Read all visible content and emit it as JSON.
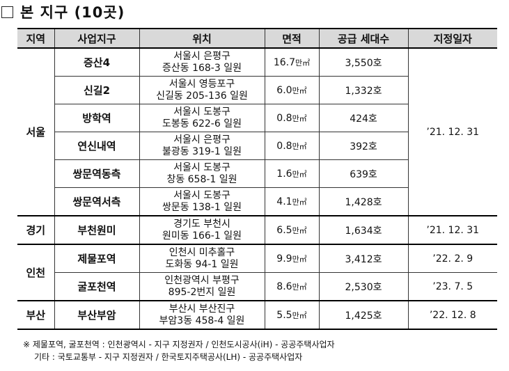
{
  "title": "본 지구 (10곳)",
  "table": {
    "headers": [
      "지역",
      "사업지구",
      "위치",
      "면적",
      "공급 세대수",
      "지정일자"
    ],
    "rows": [
      {
        "region": "서울",
        "district": "증산4",
        "loc1": "서울시 은평구",
        "loc2": "증산동 168-3 일원",
        "area": "16.7",
        "units": "3,550호"
      },
      {
        "district": "신길2",
        "loc1": "서울시 영등포구",
        "loc2": "신길동 205-136 일원",
        "area": "6.0",
        "units": "1,332호"
      },
      {
        "district": "방학역",
        "loc1": "서울시 도봉구",
        "loc2": "도봉동 622-6 일원",
        "area": "0.8",
        "units": "424호"
      },
      {
        "district": "연신내역",
        "loc1": "서울시 은평구",
        "loc2": "불광동 319-1 일원",
        "area": "0.8",
        "units": "392호"
      },
      {
        "district": "쌍문역동측",
        "loc1": "서울시 도봉구",
        "loc2": "창동 658-1 일원",
        "area": "1.6",
        "units": "639호"
      },
      {
        "district": "쌍문역서측",
        "loc1": "서울시 도봉구",
        "loc2": "쌍문동 138-1 일원",
        "area": "4.1",
        "units": "1,428호"
      },
      {
        "region": "경기",
        "district": "부천원미",
        "loc1": "경기도 부천시",
        "loc2": "원미동 166-1 일원",
        "area": "6.5",
        "units": "1,634호"
      },
      {
        "region": "인천",
        "district": "제물포역",
        "loc1": "인천시 미추홀구",
        "loc2": "도화동 94-1 일원",
        "area": "9.9",
        "units": "3,412호"
      },
      {
        "district": "굴포천역",
        "loc1": "인천광역시 부평구",
        "loc2": "895-2번지 일원",
        "area": "8.6",
        "units": "2,530호"
      },
      {
        "region": "부산",
        "district": "부산부암",
        "loc1": "부산시 부산진구",
        "loc2": "부암3동 458-4 일원",
        "area": "5.5",
        "units": "1,425호"
      }
    ],
    "area_unit": "만㎡",
    "dates": {
      "seoul": "’21. 12. 31",
      "gyeonggi": "’21. 12. 31",
      "incheon_jemulpo": "’22. 2. 9",
      "incheon_gulpo": "’23. 7. 5",
      "busan": "’22. 12. 8"
    }
  },
  "notes": [
    "※ 제물포역, 굴포천역 : 인천광역시 - 지구 지정권자 / 인천도시공사(iH) - 공공주택사업자",
    "기타 : 국토교통부 - 지구 지정권자 / 한국토지주택공사(LH) - 공공주택사업자"
  ]
}
